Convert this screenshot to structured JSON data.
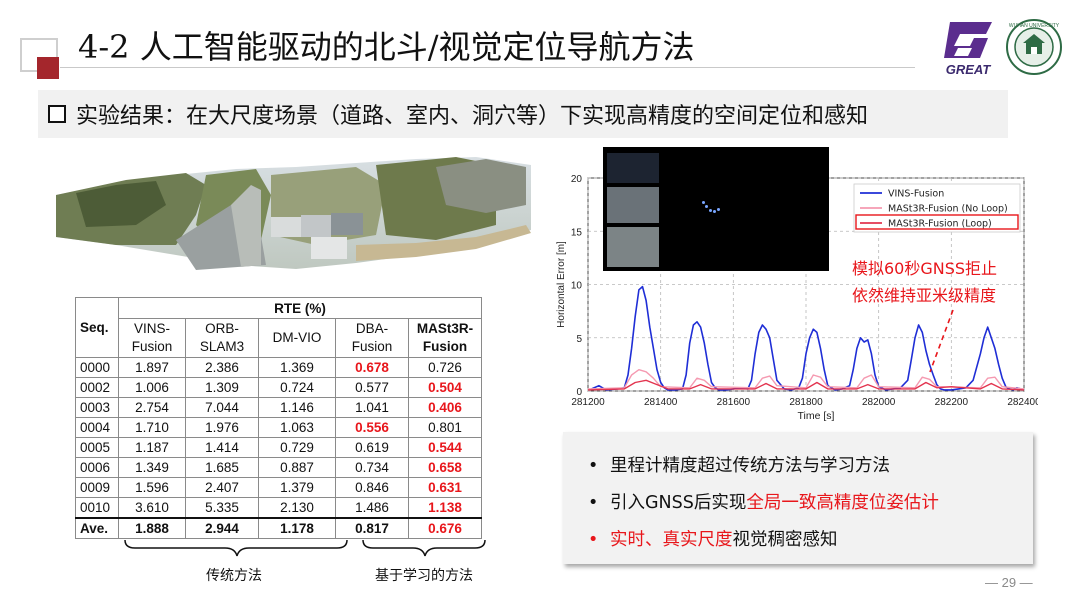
{
  "header": {
    "title": "4-2  人工智能驱动的北斗/视觉定位导航方法",
    "logo_text": "GREAT",
    "seal_text": "WUHAN UNIVERSITY"
  },
  "banner": {
    "text": "实验结果：在大尺度场景（道路、室内、洞穴等）下实现高精度的空间定位和感知"
  },
  "table": {
    "seq_header": "Seq.",
    "group_header": "RTE (%)",
    "columns": [
      {
        "l1": "VINS-",
        "l2": "Fusion"
      },
      {
        "l1": "ORB-",
        "l2": "SLAM3"
      },
      {
        "l1": "DM-VIO",
        "l2": ""
      },
      {
        "l1": "DBA-",
        "l2": "Fusion"
      },
      {
        "l1": "MASt3R-",
        "l2": "Fusion"
      }
    ],
    "rows": [
      {
        "seq": "0000",
        "v": [
          "1.897",
          "2.386",
          "1.369",
          "0.678",
          "0.726"
        ],
        "best": 3
      },
      {
        "seq": "0002",
        "v": [
          "1.006",
          "1.309",
          "0.724",
          "0.577",
          "0.504"
        ],
        "best": 4
      },
      {
        "seq": "0003",
        "v": [
          "2.754",
          "7.044",
          "1.146",
          "1.041",
          "0.406"
        ],
        "best": 4
      },
      {
        "seq": "0004",
        "v": [
          "1.710",
          "1.976",
          "1.063",
          "0.556",
          "0.801"
        ],
        "best": 3
      },
      {
        "seq": "0005",
        "v": [
          "1.187",
          "1.414",
          "0.729",
          "0.619",
          "0.544"
        ],
        "best": 4
      },
      {
        "seq": "0006",
        "v": [
          "1.349",
          "1.685",
          "0.887",
          "0.734",
          "0.658"
        ],
        "best": 4
      },
      {
        "seq": "0009",
        "v": [
          "1.596",
          "2.407",
          "1.379",
          "0.846",
          "0.631"
        ],
        "best": 4
      },
      {
        "seq": "0010",
        "v": [
          "3.610",
          "5.335",
          "2.130",
          "1.486",
          "1.138"
        ],
        "best": 4
      }
    ],
    "ave": {
      "seq": "Ave.",
      "v": [
        "1.888",
        "2.944",
        "1.178",
        "0.817",
        "0.676"
      ],
      "best": 4
    },
    "group_traditional": "传统方法",
    "group_learning": "基于学习的方法"
  },
  "chart_data": {
    "type": "line",
    "xlabel": "Time [s]",
    "ylabel": "Horizontal Error [m]",
    "xlim": [
      281200,
      282400
    ],
    "ylim": [
      0,
      20
    ],
    "xticks": [
      "281200",
      "281400",
      "281600",
      "281800",
      "282000",
      "282200",
      "282400"
    ],
    "yticks": [
      "0",
      "5",
      "10",
      "15",
      "20"
    ],
    "grid": true,
    "legend_position": "top-right",
    "series": [
      {
        "name": "VINS-Fusion",
        "color": "#1f2ed6",
        "x": [
          281210,
          281230,
          281250,
          281280,
          281300,
          281310,
          281320,
          281330,
          281340,
          281350,
          281360,
          281370,
          281380,
          281390,
          281400,
          281410,
          281420,
          281440,
          281460,
          281470,
          281480,
          281490,
          281500,
          281510,
          281520,
          281530,
          281540,
          281550,
          281560,
          281580,
          281600,
          281620,
          281640,
          281650,
          281660,
          281670,
          281680,
          281690,
          281700,
          281710,
          281720,
          281740,
          281760,
          281780,
          281790,
          281800,
          281810,
          281820,
          281830,
          281840,
          281850,
          281860,
          281880,
          281900,
          281920,
          281930,
          281940,
          281950,
          281960,
          281970,
          281980,
          281990,
          282000,
          282020,
          282040,
          282060,
          282080,
          282090,
          282100,
          282110,
          282120,
          282130,
          282140,
          282150,
          282160,
          282170,
          282180,
          282200,
          282220,
          282240,
          282260,
          282280,
          282290,
          282300,
          282310,
          282320,
          282330,
          282340,
          282350,
          282360,
          282370,
          282380,
          282400
        ],
        "y": [
          0.2,
          0.5,
          0.1,
          0.2,
          0.3,
          1.5,
          4.0,
          7.0,
          9.5,
          9.8,
          8.5,
          6.0,
          4.0,
          2.0,
          0.8,
          0.3,
          0.1,
          0.1,
          0.2,
          1.5,
          4.5,
          6.2,
          6.5,
          6.0,
          4.5,
          2.5,
          0.8,
          0.3,
          0.1,
          0.1,
          0.2,
          0.3,
          0.2,
          1.0,
          3.5,
          5.5,
          6.2,
          5.8,
          5.0,
          3.0,
          1.0,
          0.2,
          0.1,
          0.3,
          1.2,
          3.5,
          5.0,
          5.8,
          5.5,
          4.0,
          2.0,
          0.5,
          0.1,
          0.2,
          0.5,
          2.0,
          4.0,
          5.0,
          4.6,
          4.8,
          3.5,
          1.5,
          0.4,
          0.1,
          0.2,
          0.3,
          1.0,
          3.0,
          5.0,
          6.2,
          5.5,
          3.8,
          2.5,
          1.5,
          0.6,
          0.2,
          0.1,
          0.1,
          0.2,
          0.3,
          1.0,
          3.5,
          5.0,
          6.0,
          5.0,
          4.0,
          2.5,
          1.2,
          0.4,
          0.2,
          0.1,
          0.3,
          0.1
        ]
      },
      {
        "name": "MASt3R-Fusion (No Loop)",
        "color": "#f59ab1",
        "x": [
          281200,
          281300,
          281320,
          281340,
          281360,
          281380,
          281400,
          281480,
          281500,
          281520,
          281540,
          281660,
          281680,
          281700,
          281720,
          281800,
          281820,
          281840,
          281860,
          281940,
          281960,
          281980,
          282000,
          282100,
          282120,
          282140,
          282160,
          282280,
          282300,
          282320,
          282340,
          282400
        ],
        "y": [
          0.2,
          0.3,
          1.5,
          2.0,
          1.8,
          1.2,
          0.4,
          0.3,
          1.2,
          1.0,
          0.4,
          0.3,
          1.2,
          1.4,
          0.5,
          0.3,
          1.5,
          1.3,
          0.4,
          0.3,
          1.2,
          1.5,
          0.4,
          0.3,
          1.3,
          1.1,
          0.4,
          0.3,
          1.2,
          1.3,
          0.4,
          0.2
        ]
      },
      {
        "name": "MASt3R-Fusion (Loop)",
        "color": "#e3344f",
        "x": [
          281200,
          281300,
          281330,
          281360,
          281390,
          281420,
          281480,
          281510,
          281540,
          281660,
          281690,
          281720,
          281800,
          281830,
          281860,
          281940,
          281970,
          282000,
          282100,
          282130,
          282160,
          282200,
          282280,
          282310,
          282340,
          282400
        ],
        "y": [
          0.1,
          0.2,
          0.8,
          1.0,
          0.6,
          0.2,
          0.2,
          0.6,
          0.2,
          0.2,
          0.7,
          0.2,
          0.2,
          0.8,
          0.2,
          0.2,
          0.6,
          0.2,
          0.2,
          0.8,
          0.3,
          0.4,
          0.2,
          0.7,
          0.2,
          0.1
        ]
      }
    ]
  },
  "chart_annotation": {
    "line1": "模拟60秒GNSS拒止",
    "line2": "依然维持亚米级精度"
  },
  "bullets": [
    {
      "parts": [
        {
          "t": "里程计精度超过传统方法与学习方法",
          "red": false
        }
      ],
      "dot_red": false
    },
    {
      "parts": [
        {
          "t": "引入GNSS后实现",
          "red": false
        },
        {
          "t": "全局一致高精度位姿估计",
          "red": true
        }
      ],
      "dot_red": false
    },
    {
      "parts": [
        {
          "t": "实时、真实尺度",
          "red": true
        },
        {
          "t": "视觉稠密感知",
          "red": false
        }
      ],
      "dot_red": true
    }
  ],
  "page_number": "— 29 —",
  "colors": {
    "accent_red": "#e8161b",
    "title_square": "#a4262c",
    "logo_purple": "#5b2d8e"
  }
}
